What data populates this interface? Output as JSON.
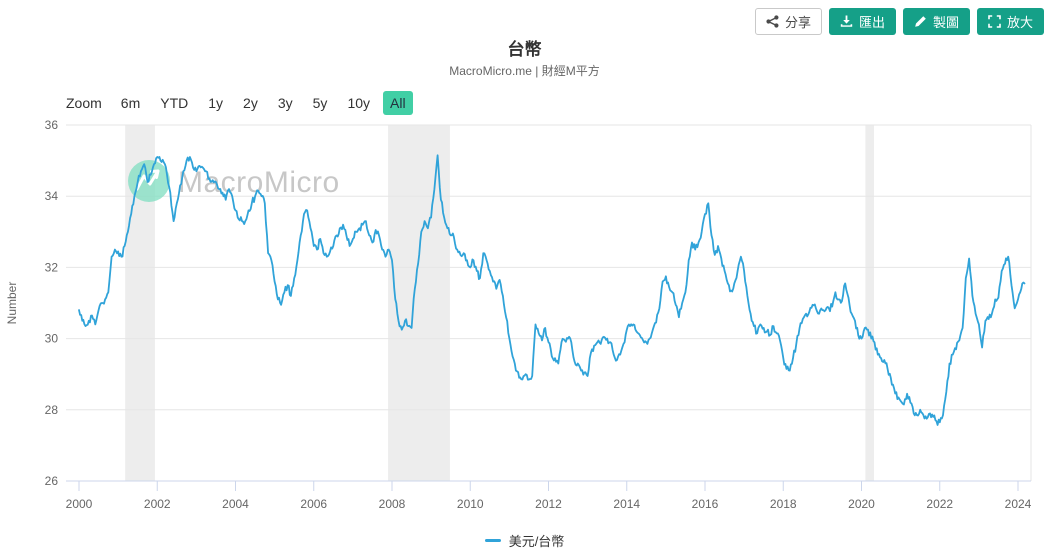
{
  "toolbar": {
    "share_label": "分享",
    "export_label": "匯出",
    "draw_label": "製圖",
    "enlarge_label": "放大"
  },
  "header": {
    "title": "台幣",
    "subtitle": "MacroMicro.me | 財經M平方"
  },
  "range_selector": {
    "zoom_label": "Zoom",
    "options": [
      "6m",
      "YTD",
      "1y",
      "2y",
      "3y",
      "5y",
      "10y",
      "All"
    ],
    "selected": "All"
  },
  "watermark": "MacroMicro",
  "legend": {
    "label": "美元/台幣"
  },
  "colors": {
    "accent_teal": "#15a088",
    "selected_range_bg": "#41cfa5",
    "line": "#30a3d9",
    "band": "#ededed",
    "grid": "#e6e6e6",
    "axis_line": "#ccd6eb",
    "label": "#666666",
    "watermark_circle": "#7fddc0",
    "watermark_text": "#c7c7c7"
  },
  "chart_data": {
    "type": "line",
    "title": "台幣",
    "subtitle": "MacroMicro.me | 財經M平方",
    "xlabel": "",
    "ylabel": "Number",
    "ylim": [
      26,
      36
    ],
    "xlim": [
      1999.67,
      2024.33
    ],
    "yticks": [
      26,
      28,
      30,
      32,
      34,
      36
    ],
    "xticks": [
      2000,
      2002,
      2004,
      2006,
      2008,
      2010,
      2012,
      2014,
      2016,
      2018,
      2020,
      2022,
      2024
    ],
    "grid": "horizontal",
    "legend_position": "bottom",
    "plot_bands": [
      {
        "from": 2001.18,
        "to": 2001.94
      },
      {
        "from": 2007.9,
        "to": 2009.48
      },
      {
        "from": 2020.1,
        "to": 2020.32
      }
    ],
    "series": [
      {
        "name": "美元/台幣",
        "color": "#30a3d9",
        "start_year": 2000,
        "frequency": "monthly",
        "values": [
          30.8,
          30.5,
          30.35,
          30.5,
          30.65,
          30.4,
          30.8,
          31.0,
          31.1,
          31.3,
          32.3,
          32.5,
          32.45,
          32.3,
          32.6,
          33.0,
          33.5,
          34.0,
          34.4,
          34.7,
          34.9,
          34.4,
          34.6,
          34.9,
          35.1,
          35.0,
          34.95,
          34.6,
          34.1,
          33.3,
          33.8,
          34.3,
          34.7,
          35.0,
          35.1,
          34.8,
          34.7,
          34.85,
          34.8,
          34.7,
          34.5,
          34.45,
          34.4,
          34.2,
          34.1,
          33.9,
          34.2,
          34.0,
          33.6,
          33.35,
          33.3,
          33.3,
          33.6,
          33.8,
          34.0,
          34.15,
          34.0,
          33.8,
          32.4,
          32.2,
          31.6,
          31.1,
          30.95,
          31.3,
          31.5,
          31.2,
          31.7,
          32.2,
          32.9,
          33.5,
          33.6,
          33.1,
          32.6,
          32.5,
          32.8,
          32.4,
          32.3,
          32.45,
          32.6,
          32.9,
          33.1,
          33.2,
          32.9,
          32.6,
          32.8,
          33.0,
          33.1,
          33.2,
          33.3,
          32.9,
          32.7,
          33.05,
          32.9,
          32.5,
          32.3,
          32.5,
          32.2,
          31.1,
          30.5,
          30.25,
          30.5,
          30.35,
          30.3,
          31.4,
          32.1,
          33.0,
          33.3,
          33.1,
          33.4,
          34.2,
          35.15,
          33.9,
          33.4,
          33.1,
          32.9,
          32.85,
          32.5,
          32.35,
          32.4,
          32.2,
          32.0,
          32.2,
          31.9,
          31.7,
          32.4,
          32.2,
          31.9,
          31.6,
          31.4,
          31.65,
          31.2,
          30.6,
          30.0,
          29.5,
          29.1,
          28.9,
          28.85,
          29.0,
          28.85,
          28.95,
          30.4,
          30.15,
          29.95,
          30.3,
          29.9,
          29.5,
          29.45,
          29.3,
          29.9,
          29.95,
          30.0,
          29.9,
          29.35,
          29.3,
          29.1,
          29.05,
          28.95,
          29.6,
          29.8,
          29.9,
          29.85,
          30.05,
          30.0,
          29.9,
          29.55,
          29.4,
          29.55,
          29.85,
          30.25,
          30.35,
          30.4,
          30.2,
          30.1,
          29.95,
          29.9,
          30.0,
          30.25,
          30.45,
          30.85,
          31.6,
          31.75,
          31.45,
          31.3,
          30.95,
          30.6,
          31.0,
          31.3,
          32.2,
          32.7,
          32.5,
          32.7,
          33.0,
          33.5,
          33.8,
          32.9,
          32.35,
          32.6,
          32.25,
          31.9,
          31.55,
          31.35,
          31.55,
          31.9,
          32.3,
          31.9,
          31.2,
          30.7,
          30.35,
          30.15,
          30.4,
          30.3,
          30.2,
          30.1,
          30.35,
          30.15,
          29.95,
          29.45,
          29.15,
          29.1,
          29.45,
          29.85,
          30.3,
          30.55,
          30.7,
          30.75,
          30.95,
          30.85,
          30.7,
          30.8,
          30.8,
          30.85,
          30.9,
          31.3,
          31.1,
          31.05,
          31.55,
          31.15,
          30.7,
          30.5,
          30.1,
          30.0,
          30.3,
          30.25,
          30.0,
          29.9,
          29.55,
          29.45,
          29.4,
          29.15,
          28.9,
          28.6,
          28.3,
          28.25,
          28.15,
          28.45,
          28.2,
          27.9,
          27.85,
          28.0,
          27.85,
          27.75,
          27.9,
          27.8,
          27.68,
          27.65,
          27.85,
          28.5,
          29.3,
          29.55,
          29.7,
          29.95,
          30.3,
          31.7,
          32.25,
          31.2,
          30.7,
          30.4,
          29.75,
          30.5,
          30.55,
          30.7,
          31.1,
          31.15,
          31.9,
          32.1,
          32.3,
          31.5,
          30.85,
          31.1,
          31.4,
          31.55
        ]
      }
    ]
  }
}
